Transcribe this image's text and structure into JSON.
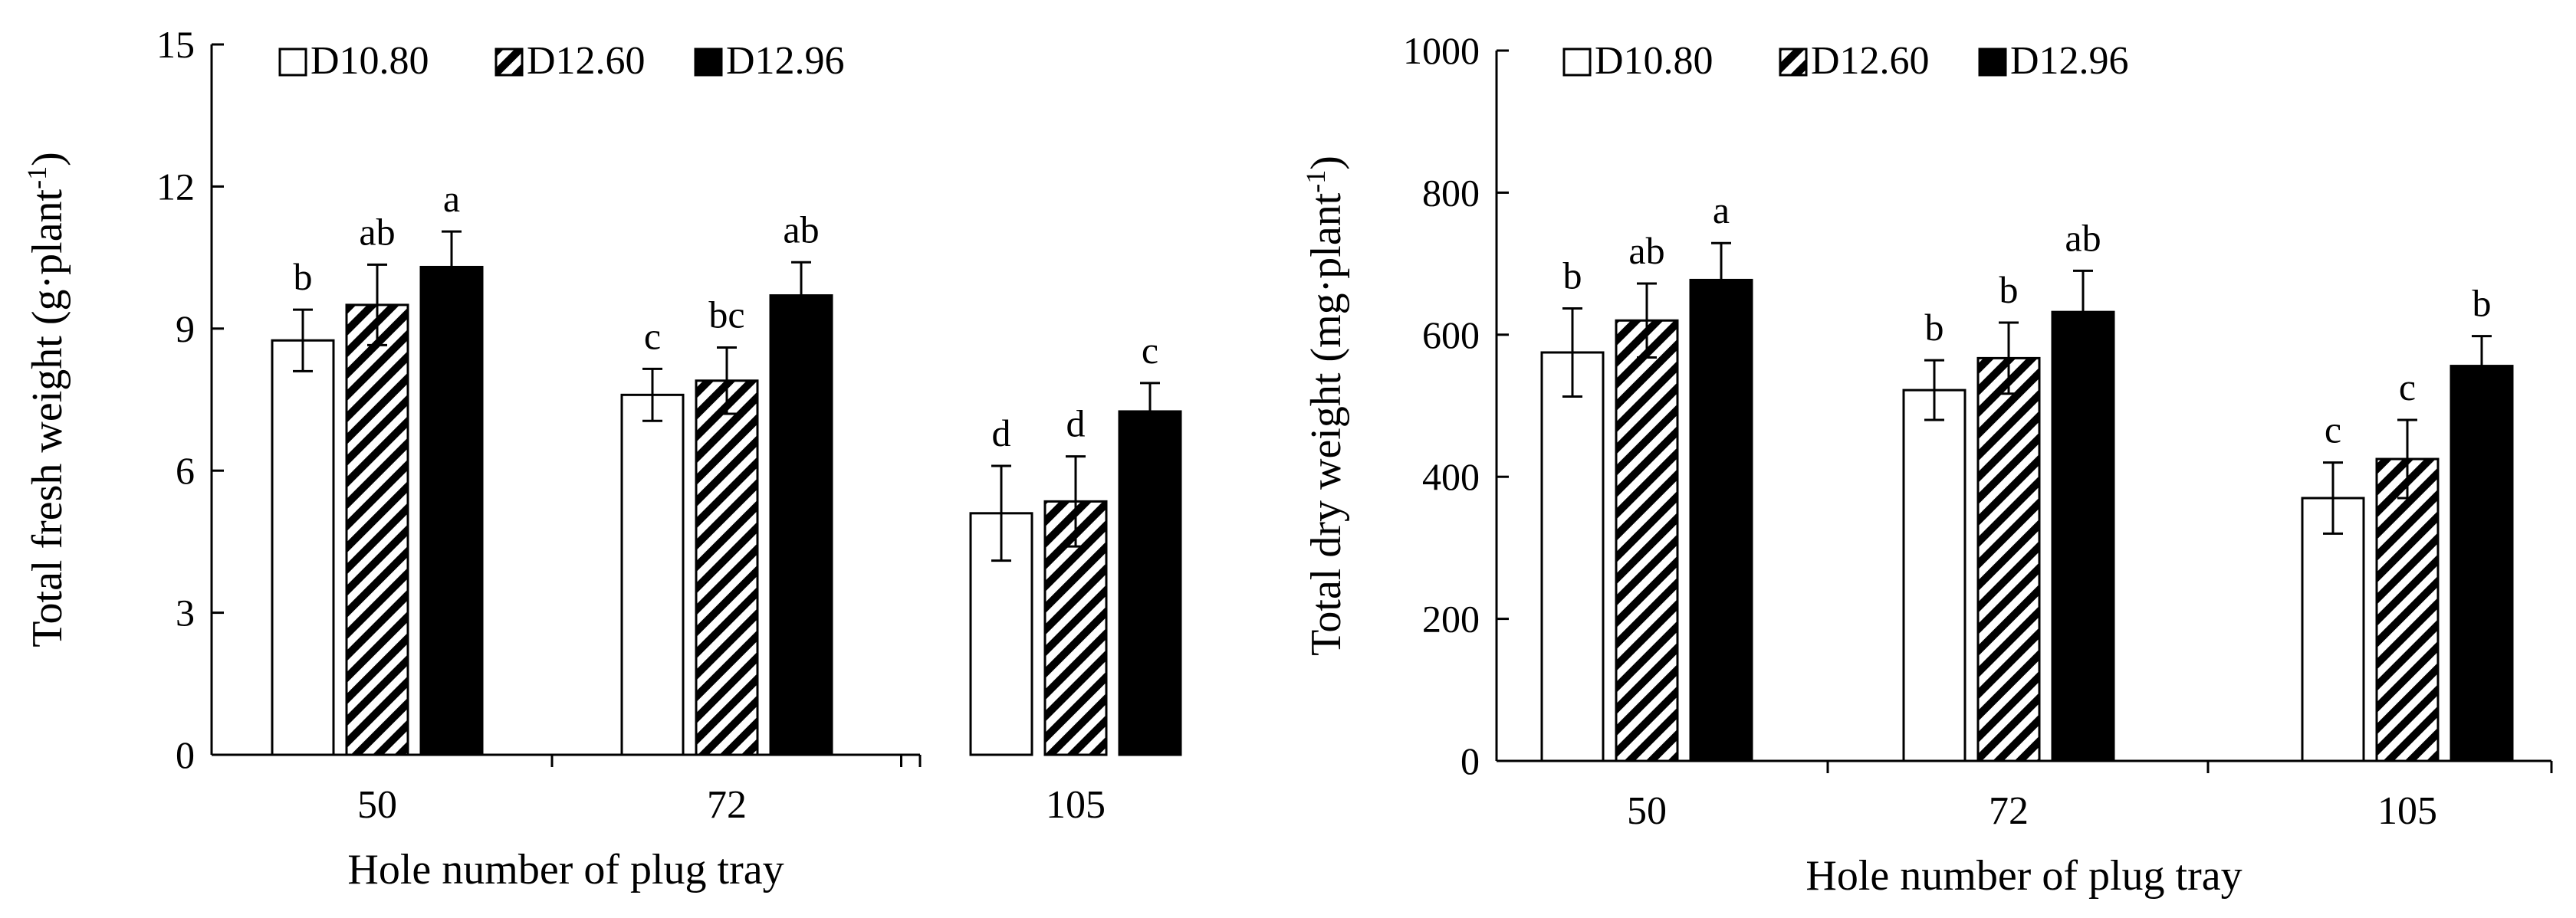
{
  "chart_data": [
    {
      "type": "bar",
      "title": "",
      "xlabel": "Hole number of plug tray",
      "ylabel_main": "Total fresh weight (g·plant",
      "ylabel_sup": "-1",
      "ylabel_end": ")",
      "ylim": [
        0,
        15
      ],
      "yticks": [
        0,
        3,
        6,
        9,
        12,
        15
      ],
      "yticklabels": [
        "0",
        "3",
        "6",
        "9",
        "12",
        "15"
      ],
      "categories": [
        "50",
        "72",
        "105"
      ],
      "series": [
        {
          "name": "D10.80",
          "fill": "white",
          "values": [
            8.75,
            7.6,
            5.1
          ],
          "errors": [
            0.65,
            0.55,
            1.0
          ],
          "letters": [
            "b",
            "c",
            "d"
          ]
        },
        {
          "name": "D12.60",
          "fill": "hatch",
          "values": [
            9.5,
            7.9,
            5.35
          ],
          "errors": [
            0.85,
            0.7,
            0.95
          ],
          "letters": [
            "ab",
            "bc",
            "d"
          ]
        },
        {
          "name": "D12.96",
          "fill": "black",
          "values": [
            10.3,
            9.7,
            7.25
          ],
          "errors": [
            0.75,
            0.7,
            0.6
          ],
          "letters": [
            "a",
            "ab",
            "c"
          ]
        }
      ]
    },
    {
      "type": "bar",
      "title": "",
      "xlabel": "Hole number of plug tray",
      "ylabel_main": "Total dry weight (mg·plant",
      "ylabel_sup": "-1",
      "ylabel_end": ")",
      "ylim": [
        0,
        1000
      ],
      "yticks": [
        0,
        200,
        400,
        600,
        800,
        1000
      ],
      "yticklabels": [
        "0",
        "200",
        "400",
        "600",
        "800",
        "1000"
      ],
      "categories": [
        "50",
        "72",
        "105"
      ],
      "series": [
        {
          "name": "D10.80",
          "fill": "white",
          "values": [
            575,
            522,
            370
          ],
          "errors": [
            62,
            42,
            50
          ],
          "letters": [
            "b",
            "b",
            "c"
          ]
        },
        {
          "name": "D12.60",
          "fill": "hatch",
          "values": [
            620,
            567,
            425
          ],
          "errors": [
            52,
            50,
            55
          ],
          "letters": [
            "ab",
            "b",
            "c"
          ]
        },
        {
          "name": "D12.96",
          "fill": "black",
          "values": [
            677,
            632,
            556
          ],
          "errors": [
            52,
            58,
            42
          ],
          "letters": [
            "a",
            "ab",
            "b"
          ]
        }
      ]
    }
  ]
}
